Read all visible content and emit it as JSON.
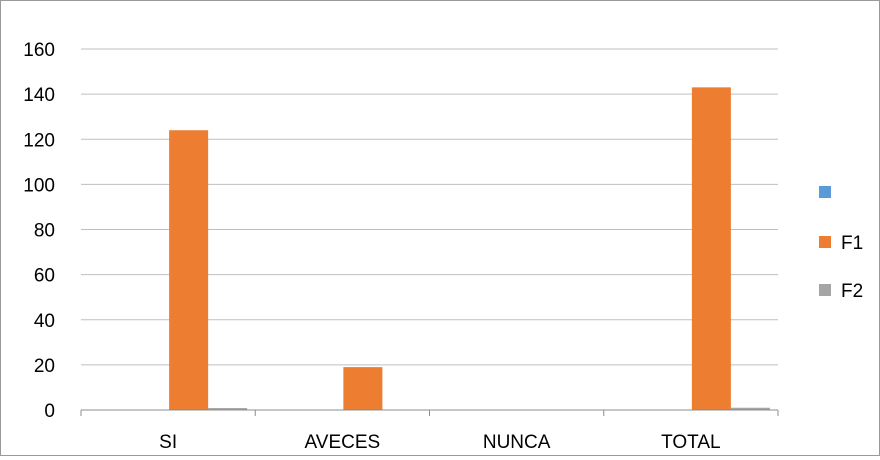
{
  "chart_data": {
    "type": "bar",
    "title": "",
    "xlabel": "",
    "ylabel": "",
    "categories": [
      "SI",
      "AVECES",
      "NUNCA",
      "TOTAL"
    ],
    "series": [
      {
        "name": "",
        "color": "#5b9bd5",
        "values": [
          0,
          0,
          0,
          0
        ]
      },
      {
        "name": "F1",
        "color": "#ed7d31",
        "values": [
          124,
          19,
          0,
          143
        ]
      },
      {
        "name": "F2",
        "color": "#a5a5a5",
        "values": [
          0.87,
          0.13,
          0,
          1
        ]
      }
    ],
    "ylim": [
      0,
      160
    ],
    "yticks": [
      "0",
      "20",
      "40",
      "60",
      "80",
      "100",
      "120",
      "140",
      "160"
    ],
    "grid": true,
    "legend_position": "right"
  }
}
